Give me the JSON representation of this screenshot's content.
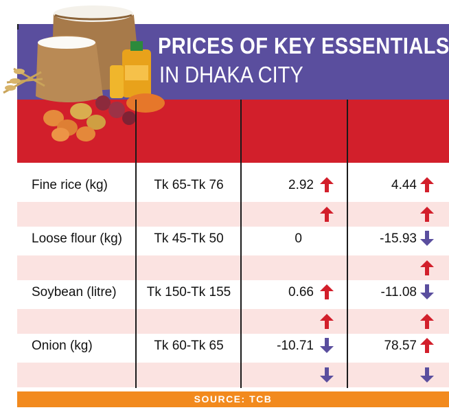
{
  "title": {
    "line1": "PRICES OF KEY ESSENTIALS",
    "line2": "IN DHAKA CITY"
  },
  "source": "SOURCE: TCB",
  "colors": {
    "title_band": "#5a4e9e",
    "header_band": "#d21f2b",
    "alt_row": "#fbe3e1",
    "source_bar": "#f28a1e",
    "up_arrow": "#d21f2b",
    "down_arrow": "#5a4e9e"
  },
  "chart_data": {
    "type": "table",
    "title": "PRICES OF KEY ESSENTIALS IN DHAKA CITY",
    "columns": [
      "",
      "",
      "",
      ""
    ],
    "rows": [
      {
        "item": "Fine rice (kg)",
        "price": "Tk 65-Tk 76",
        "change_a": "2.92",
        "dir_a": "up",
        "change_b": "4.44",
        "dir_b": "up",
        "sub_a": "up",
        "sub_b": "up"
      },
      {
        "item": "Loose flour (kg)",
        "price": "Tk 45-Tk 50",
        "change_a": "0",
        "dir_a": "",
        "change_b": "-15.93",
        "dir_b": "down",
        "sub_a": "",
        "sub_b": "up"
      },
      {
        "item": "Soybean (litre)",
        "price": "Tk 150-Tk 155",
        "change_a": "0.66",
        "dir_a": "up",
        "change_b": "-11.08",
        "dir_b": "down",
        "sub_a": "up",
        "sub_b": "up"
      },
      {
        "item": "Onion (kg)",
        "price": "Tk 60-Tk 65",
        "change_a": "-10.71",
        "dir_a": "down",
        "change_b": "78.57",
        "dir_b": "up",
        "sub_a": "down",
        "sub_b": "down"
      }
    ]
  },
  "icons": {
    "illustration": "groceries-illustration",
    "up": "up-arrow-icon",
    "down": "down-arrow-icon"
  }
}
